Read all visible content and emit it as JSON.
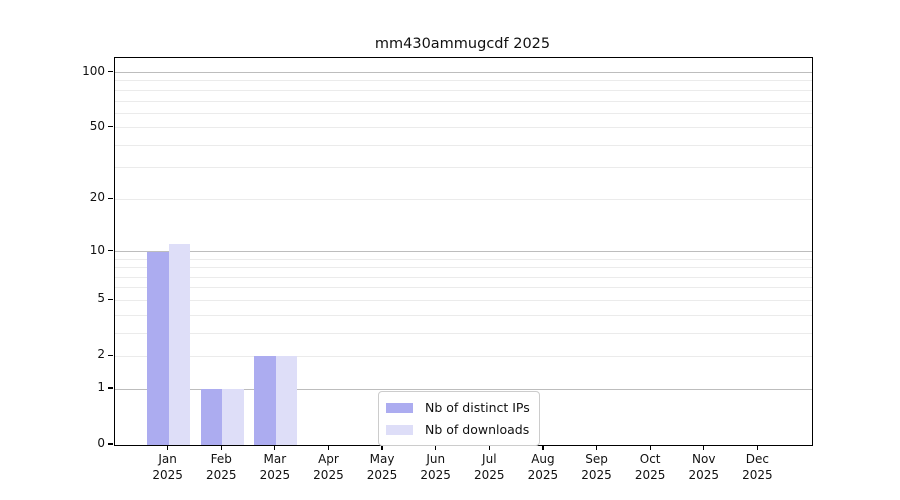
{
  "figure": {
    "title": "mm430ammugcdf 2025"
  },
  "chart_data": {
    "type": "bar",
    "title": "mm430ammugcdf 2025",
    "categories": [
      "Jan",
      "Feb",
      "Mar",
      "Apr",
      "May",
      "Jun",
      "Jul",
      "Aug",
      "Sep",
      "Oct",
      "Nov",
      "Dec"
    ],
    "year_label": "2025",
    "series": [
      {
        "name": "Nb of distinct IPs",
        "color": "#acacf0",
        "values": [
          10,
          1,
          2,
          0,
          0,
          0,
          0,
          0,
          0,
          0,
          0,
          0
        ]
      },
      {
        "name": "Nb of downloads",
        "color": "#dedef8",
        "values": [
          11,
          1,
          2,
          0,
          0,
          0,
          0,
          0,
          0,
          0,
          0,
          0
        ]
      }
    ],
    "xlabel": "",
    "ylabel": "",
    "yscale": "log1p",
    "ylim": [
      0,
      120
    ],
    "yticks": [
      100,
      50,
      20,
      10,
      5,
      2,
      1,
      0
    ],
    "major_gridlines": [
      1,
      10,
      100
    ],
    "minor_gridlines": [
      2,
      3,
      4,
      5,
      6,
      7,
      8,
      9,
      20,
      30,
      40,
      50,
      60,
      70,
      80,
      90
    ],
    "grid": true,
    "legend_position": "lower center"
  },
  "colors": {
    "major_grid": "#bdbdbd",
    "minor_grid": "#ebebeb",
    "spine": "#000000",
    "text": "#111111",
    "legend_border": "#cccccc"
  }
}
